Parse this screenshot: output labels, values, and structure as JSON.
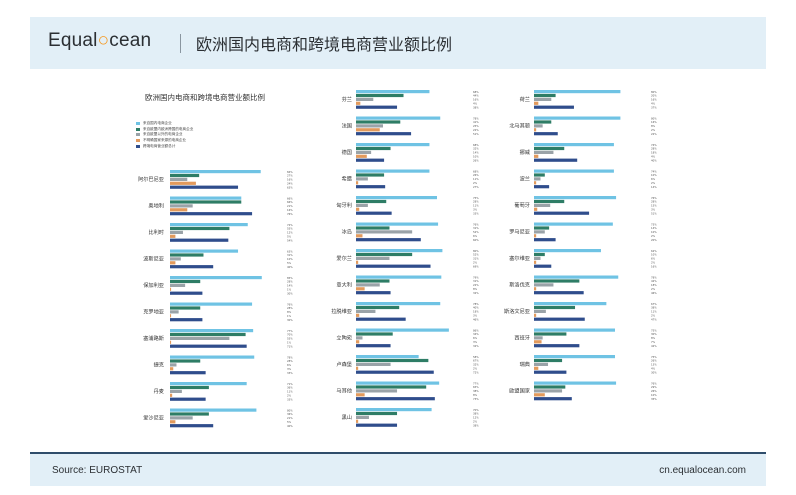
{
  "header": {
    "brand_pre": "Equal",
    "brand_post": "cean",
    "title": "欧洲国内电商和跨境电商营业额比例"
  },
  "chart_data": {
    "type": "bar",
    "orientation": "horizontal",
    "title": "欧洲国内电商和跨境电商营业额比例",
    "xlim": [
      0,
      100
    ],
    "unit": "%",
    "legend_position": "top-left",
    "series": [
      {
        "name": "来自国内电商企业",
        "color": "#6fc3e4"
      },
      {
        "name": "来自欧盟内欧洲跨国的电商企业",
        "color": "#2e7d66"
      },
      {
        "name": "来自欧盟以外的电商企业",
        "color": "#9aa3a8"
      },
      {
        "name": "不明确国家来源的电商企业",
        "color": "#e29a5c"
      },
      {
        "name": "跨境电商营业额总计",
        "color": "#2f4d8c"
      }
    ],
    "countries": [
      {
        "name": "阿尔巴尼亚",
        "values": [
          84,
          27,
          16,
          24,
          63
        ]
      },
      {
        "name": "奥地利",
        "values": [
          66,
          66,
          21,
          16,
          76
        ]
      },
      {
        "name": "比利时",
        "values": [
          72,
          55,
          12,
          5,
          54
        ]
      },
      {
        "name": "波斯尼亚",
        "values": [
          63,
          31,
          10,
          5,
          40
        ]
      },
      {
        "name": "保加利亚",
        "values": [
          85,
          28,
          14,
          1,
          30
        ]
      },
      {
        "name": "克罗地亚",
        "values": [
          76,
          28,
          8,
          1,
          30
        ]
      },
      {
        "name": "塞浦路斯",
        "values": [
          77,
          70,
          55,
          1,
          71
        ]
      },
      {
        "name": "捷克",
        "values": [
          78,
          28,
          6,
          3,
          33
        ]
      },
      {
        "name": "丹麦",
        "values": [
          71,
          36,
          11,
          2,
          33
        ]
      },
      {
        "name": "爱沙尼亚",
        "values": [
          80,
          36,
          21,
          5,
          40
        ]
      },
      {
        "name": "芬兰",
        "values": [
          68,
          44,
          16,
          4,
          38
        ]
      },
      {
        "name": "法国",
        "values": [
          78,
          41,
          25,
          22,
          51
        ]
      },
      {
        "name": "德国",
        "values": [
          68,
          32,
          14,
          10,
          26
        ]
      },
      {
        "name": "希腊",
        "values": [
          68,
          26,
          11,
          2,
          27
        ]
      },
      {
        "name": "匈牙利",
        "values": [
          75,
          28,
          11,
          3,
          33
        ]
      },
      {
        "name": "冰岛",
        "values": [
          76,
          31,
          52,
          6,
          60
        ]
      },
      {
        "name": "爱尔兰",
        "values": [
          80,
          52,
          31,
          2,
          69
        ]
      },
      {
        "name": "意大利",
        "values": [
          79,
          31,
          22,
          8,
          32
        ]
      },
      {
        "name": "拉脱维亚",
        "values": [
          78,
          40,
          18,
          3,
          46
        ]
      },
      {
        "name": "立陶宛",
        "values": [
          86,
          34,
          6,
          3,
          32
        ]
      },
      {
        "name": "卢森堡",
        "values": [
          58,
          67,
          32,
          2,
          72
        ]
      },
      {
        "name": "马耳他",
        "values": [
          77,
          65,
          38,
          8,
          73
        ]
      },
      {
        "name": "黑山",
        "values": [
          70,
          38,
          12,
          2,
          38
        ]
      },
      {
        "name": "荷兰",
        "values": [
          80,
          20,
          16,
          4,
          37
        ]
      },
      {
        "name": "北马其顿",
        "values": [
          80,
          16,
          8,
          2,
          22
        ]
      },
      {
        "name": "挪威",
        "values": [
          74,
          28,
          18,
          4,
          40
        ]
      },
      {
        "name": "波兰",
        "values": [
          74,
          10,
          6,
          2,
          14
        ]
      },
      {
        "name": "葡萄牙",
        "values": [
          76,
          28,
          15,
          3,
          51
        ]
      },
      {
        "name": "罗马尼亚",
        "values": [
          73,
          14,
          10,
          2,
          20
        ]
      },
      {
        "name": "塞尔维亚",
        "values": [
          62,
          10,
          6,
          2,
          16
        ]
      },
      {
        "name": "斯洛伐克",
        "values": [
          78,
          42,
          18,
          2,
          46
        ]
      },
      {
        "name": "斯洛文尼亚",
        "values": [
          67,
          38,
          11,
          2,
          47
        ]
      },
      {
        "name": "西班牙",
        "values": [
          75,
          30,
          8,
          7,
          42
        ]
      },
      {
        "name": "瑞典",
        "values": [
          75,
          26,
          13,
          4,
          30
        ]
      },
      {
        "name": "欧盟国家",
        "values": [
          76,
          29,
          26,
          10,
          35
        ]
      }
    ]
  },
  "footer": {
    "source": "Source: EUROSTAT",
    "site": "cn.equalocean.com"
  }
}
